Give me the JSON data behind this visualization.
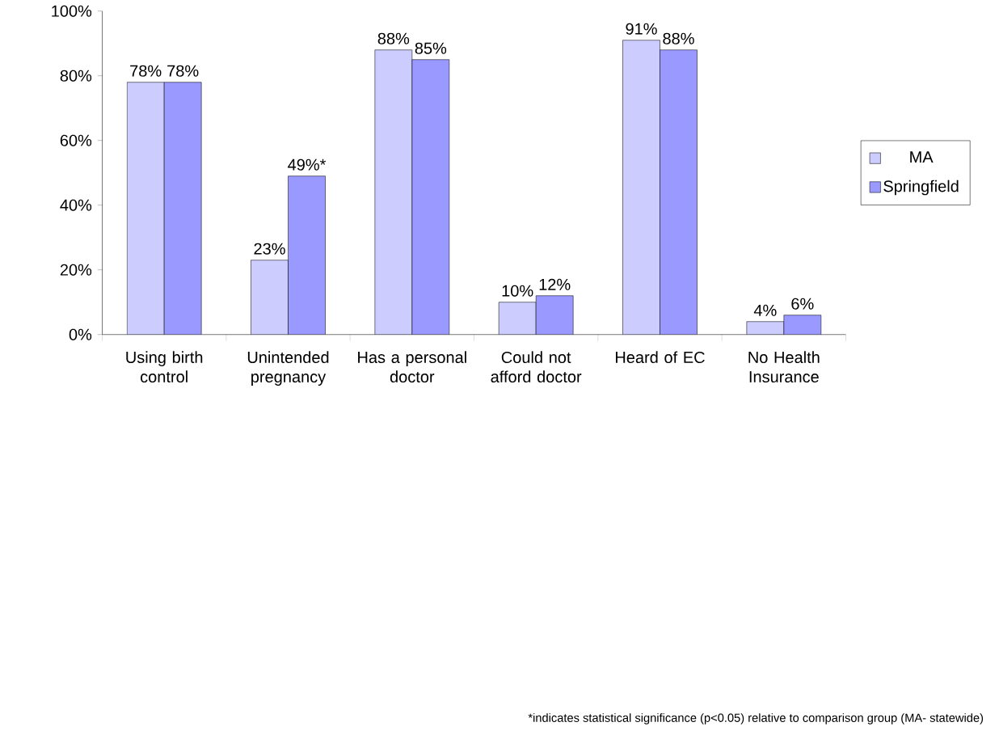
{
  "chart_data": {
    "type": "bar",
    "categories": [
      "Using birth control",
      "Unintended pregnancy",
      "Has a personal doctor",
      "Could not afford doctor",
      "Heard of EC",
      "No Health Insurance"
    ],
    "series": [
      {
        "name": "MA",
        "color": "#ccccff",
        "values": [
          78,
          23,
          88,
          10,
          91,
          4
        ],
        "value_labels": [
          "78%",
          "23%",
          "88%",
          "10%",
          "91%",
          "4%"
        ]
      },
      {
        "name": "Springfield",
        "color": "#9999ff",
        "values": [
          78,
          49,
          85,
          12,
          88,
          6
        ],
        "value_labels": [
          "78%",
          "49%*",
          "85%",
          "12%",
          "88%",
          "6%"
        ]
      }
    ],
    "ylim": [
      0,
      100
    ],
    "yticks": [
      {
        "value": 0,
        "label": "0%"
      },
      {
        "value": 20,
        "label": "20%"
      },
      {
        "value": 40,
        "label": "40%"
      },
      {
        "value": 60,
        "label": "60%"
      },
      {
        "value": 80,
        "label": "80%"
      },
      {
        "value": 100,
        "label": "100%"
      }
    ],
    "legend": "right",
    "annotations": [
      "*indicates statistical significance (p<0.05) relative to comparison group (MA- statewide)"
    ]
  }
}
